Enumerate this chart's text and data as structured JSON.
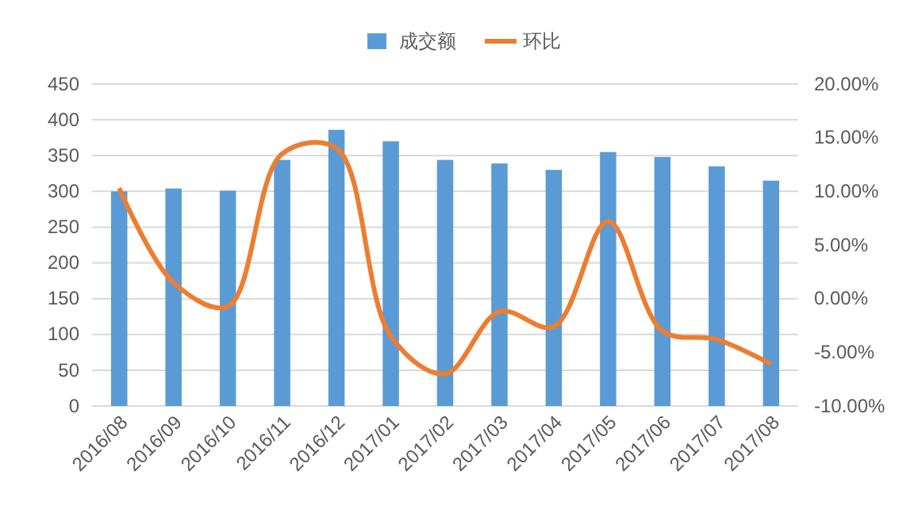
{
  "chart_data": {
    "type": "bar",
    "categories": [
      "2016/08",
      "2016/09",
      "2016/10",
      "2016/11",
      "2016/12",
      "2017/01",
      "2017/02",
      "2017/03",
      "2017/04",
      "2017/05",
      "2017/06",
      "2017/07",
      "2017/08"
    ],
    "series": [
      {
        "name": "成交额",
        "color": "#5b9bd5",
        "values": [
          300,
          304,
          301,
          344,
          386,
          370,
          344,
          339,
          330,
          355,
          348,
          335,
          315
        ]
      },
      {
        "name": "环比",
        "type": "line",
        "axis": "y2",
        "color": "#ed7d31",
        "marker": "none",
        "values": [
          10.3,
          1.5,
          -0.7,
          13.5,
          14.0,
          -3.5,
          -7.0,
          -1.2,
          -2.6,
          7.2,
          -3.0,
          -3.8,
          -6.1
        ]
      }
    ],
    "ylim": [
      0,
      450
    ],
    "yticks": [
      0,
      50,
      100,
      150,
      200,
      250,
      300,
      350,
      400,
      450
    ],
    "y2lim": [
      -10,
      20
    ],
    "y2ticks": [
      {
        "value": -10,
        "label": "-10.00%"
      },
      {
        "value": -5,
        "label": "-5.00%"
      },
      {
        "value": 0,
        "label": "0.00%"
      },
      {
        "value": 5,
        "label": "5.00%"
      },
      {
        "value": 10,
        "label": "10.00%"
      },
      {
        "value": 15,
        "label": "15.00%"
      },
      {
        "value": 20,
        "label": "20.00%"
      }
    ],
    "grid": "y",
    "legend": "top"
  }
}
